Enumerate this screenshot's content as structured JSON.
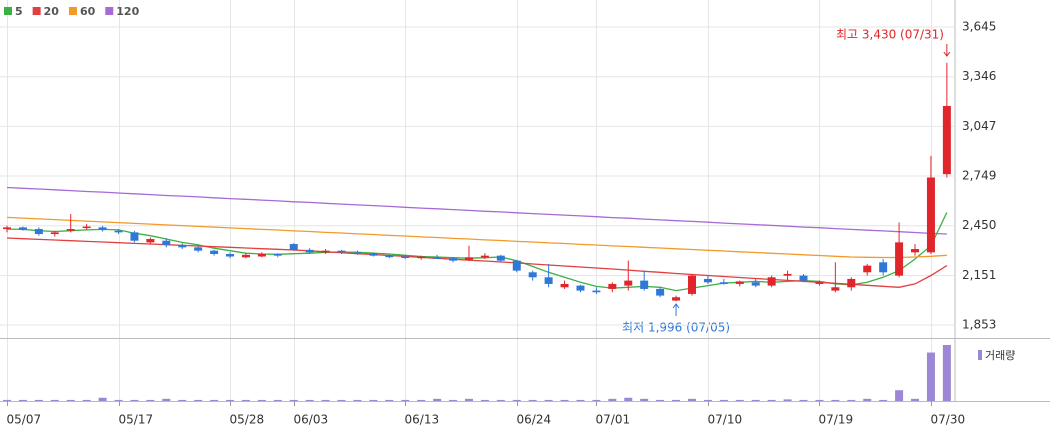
{
  "chart_data": {
    "type": "candlestick",
    "categories": [
      "05/07",
      null,
      null,
      null,
      null,
      null,
      null,
      "05/17",
      null,
      null,
      null,
      null,
      null,
      null,
      "05/28",
      null,
      null,
      null,
      "06/03",
      null,
      null,
      null,
      null,
      null,
      null,
      "06/13",
      null,
      null,
      null,
      null,
      null,
      null,
      "06/24",
      null,
      null,
      null,
      null,
      "07/01",
      null,
      null,
      null,
      null,
      null,
      null,
      "07/10",
      null,
      null,
      null,
      null,
      null,
      null,
      "07/19",
      null,
      null,
      null,
      null,
      null,
      null,
      "07/30",
      null
    ],
    "open": [
      2430,
      2440,
      2430,
      2400,
      2420,
      2440,
      2440,
      2420,
      2410,
      2350,
      2360,
      2335,
      2320,
      2300,
      2280,
      2260,
      2265,
      2280,
      2340,
      2305,
      2290,
      2300,
      2290,
      2285,
      2270,
      2265,
      2255,
      2260,
      2255,
      2245,
      2260,
      2270,
      2240,
      2170,
      2140,
      2080,
      2090,
      2060,
      2070,
      2090,
      2120,
      2070,
      2000,
      2040,
      2130,
      2110,
      2100,
      2110,
      2090,
      2150,
      2150,
      2100,
      2060,
      2080,
      2170,
      2230,
      2150,
      2290,
      2290,
      2760
    ],
    "high": [
      2450,
      2445,
      2440,
      2420,
      2520,
      2460,
      2450,
      2430,
      2420,
      2380,
      2375,
      2345,
      2330,
      2305,
      2290,
      2285,
      2290,
      2285,
      2345,
      2315,
      2310,
      2305,
      2300,
      2290,
      2280,
      2275,
      2270,
      2275,
      2260,
      2330,
      2285,
      2275,
      2245,
      2180,
      2220,
      2120,
      2095,
      2080,
      2110,
      2240,
      2180,
      2080,
      2030,
      2160,
      2150,
      2130,
      2120,
      2130,
      2150,
      2180,
      2160,
      2120,
      2230,
      2140,
      2220,
      2250,
      2470,
      2340,
      2870,
      3430
    ],
    "low": [
      2410,
      2420,
      2390,
      2385,
      2410,
      2425,
      2415,
      2400,
      2350,
      2340,
      2320,
      2310,
      2290,
      2270,
      2255,
      2255,
      2260,
      2260,
      2300,
      2280,
      2280,
      2280,
      2275,
      2265,
      2255,
      2250,
      2245,
      2250,
      2230,
      2240,
      2250,
      2230,
      2170,
      2120,
      2080,
      2070,
      2050,
      2040,
      2050,
      2060,
      2060,
      2020,
      1996,
      2030,
      2100,
      2095,
      2085,
      2080,
      2080,
      2120,
      2110,
      2090,
      2050,
      2060,
      2150,
      2150,
      2140,
      2270,
      2280,
      2740
    ],
    "close": [
      2440,
      2425,
      2400,
      2410,
      2430,
      2445,
      2425,
      2410,
      2360,
      2370,
      2335,
      2320,
      2300,
      2280,
      2265,
      2275,
      2280,
      2270,
      2305,
      2290,
      2300,
      2290,
      2285,
      2270,
      2265,
      2260,
      2265,
      2255,
      2240,
      2260,
      2270,
      2240,
      2180,
      2140,
      2100,
      2100,
      2060,
      2050,
      2100,
      2120,
      2070,
      2030,
      2020,
      2150,
      2110,
      2100,
      2115,
      2090,
      2140,
      2160,
      2120,
      2110,
      2080,
      2130,
      2210,
      2170,
      2350,
      2310,
      2740,
      3170
    ],
    "up_color": "#e0262b",
    "down_color": "#2f78d8",
    "ylim": [
      1775,
      3777
    ],
    "yticks": [
      {
        "value": 1853,
        "label": "1,853"
      },
      {
        "value": 2151,
        "label": "2,151"
      },
      {
        "value": 2450,
        "label": "2,450"
      },
      {
        "value": 2749,
        "label": "2,749"
      },
      {
        "value": 3047,
        "label": "3,047"
      },
      {
        "value": 3346,
        "label": "3,346"
      },
      {
        "value": 3645,
        "label": "3,645"
      }
    ],
    "grid": true,
    "series": [
      {
        "name": "5",
        "color": "#3cb043",
        "values": [
          2430,
          2428,
          2420,
          2415,
          2420,
          2425,
          2428,
          2425,
          2405,
          2390,
          2370,
          2350,
          2335,
          2315,
          2300,
          2285,
          2280,
          2278,
          2282,
          2285,
          2290,
          2292,
          2290,
          2285,
          2280,
          2272,
          2265,
          2262,
          2258,
          2255,
          2258,
          2262,
          2240,
          2205,
          2170,
          2140,
          2110,
          2085,
          2075,
          2080,
          2085,
          2080,
          2060,
          2075,
          2090,
          2105,
          2110,
          2115,
          2110,
          2115,
          2120,
          2115,
          2100,
          2095,
          2110,
          2140,
          2180,
          2250,
          2330,
          2530
        ]
      },
      {
        "name": "20",
        "color": "#e04040",
        "values": [
          2376,
          2372,
          2368,
          2364,
          2360,
          2356,
          2352,
          2348,
          2344,
          2340,
          2336,
          2332,
          2328,
          2324,
          2320,
          2316,
          2312,
          2308,
          2304,
          2299,
          2293,
          2288,
          2282,
          2277,
          2271,
          2266,
          2260,
          2254,
          2249,
          2243,
          2238,
          2232,
          2227,
          2220,
          2214,
          2208,
          2202,
          2196,
          2190,
          2183,
          2176,
          2170,
          2163,
          2157,
          2151,
          2145,
          2139,
          2133,
          2127,
          2121,
          2116,
          2110,
          2104,
          2098,
          2092,
          2086,
          2080,
          2100,
          2151,
          2210
        ]
      },
      {
        "name": "60",
        "color": "#f39a2b",
        "values": [
          2500,
          2496,
          2491,
          2487,
          2482,
          2478,
          2473,
          2469,
          2464,
          2460,
          2455,
          2451,
          2446,
          2442,
          2437,
          2433,
          2428,
          2424,
          2419,
          2415,
          2410,
          2406,
          2401,
          2397,
          2392,
          2388,
          2383,
          2379,
          2374,
          2370,
          2365,
          2361,
          2356,
          2352,
          2347,
          2343,
          2338,
          2334,
          2329,
          2325,
          2320,
          2316,
          2311,
          2307,
          2302,
          2298,
          2293,
          2289,
          2284,
          2280,
          2275,
          2271,
          2266,
          2262,
          2260,
          2259,
          2259,
          2262,
          2266,
          2272
        ]
      },
      {
        "name": "120",
        "color": "#a66bd6",
        "values": [
          2680,
          2675,
          2671,
          2666,
          2661,
          2656,
          2652,
          2647,
          2642,
          2637,
          2632,
          2628,
          2623,
          2618,
          2613,
          2609,
          2604,
          2599,
          2594,
          2590,
          2585,
          2580,
          2575,
          2571,
          2566,
          2561,
          2556,
          2552,
          2547,
          2542,
          2537,
          2533,
          2528,
          2523,
          2518,
          2514,
          2509,
          2504,
          2499,
          2495,
          2490,
          2485,
          2480,
          2476,
          2471,
          2466,
          2461,
          2457,
          2452,
          2447,
          2442,
          2438,
          2433,
          2428,
          2423,
          2419,
          2414,
          2409,
          2404,
          2400
        ]
      }
    ],
    "volume": {
      "name": "거래량",
      "color": "#9b87d6",
      "values": [
        1,
        1,
        1,
        1,
        1,
        1,
        3,
        1,
        1,
        1,
        2,
        1,
        1,
        1,
        1,
        1,
        1,
        1,
        1,
        1,
        1,
        1,
        1,
        1,
        1,
        1,
        1,
        2,
        1,
        2,
        1,
        1,
        1,
        1,
        1,
        1,
        1,
        1,
        2,
        3,
        2,
        1,
        1,
        2,
        1,
        1,
        1,
        1,
        1,
        1.5,
        1,
        1,
        1,
        1,
        2,
        1,
        10,
        2,
        45,
        52
      ]
    },
    "annotations": [
      {
        "text": "최고 3,430 (07/31)"
      },
      {
        "text": "최저 1,996 (07/05)"
      }
    ]
  }
}
